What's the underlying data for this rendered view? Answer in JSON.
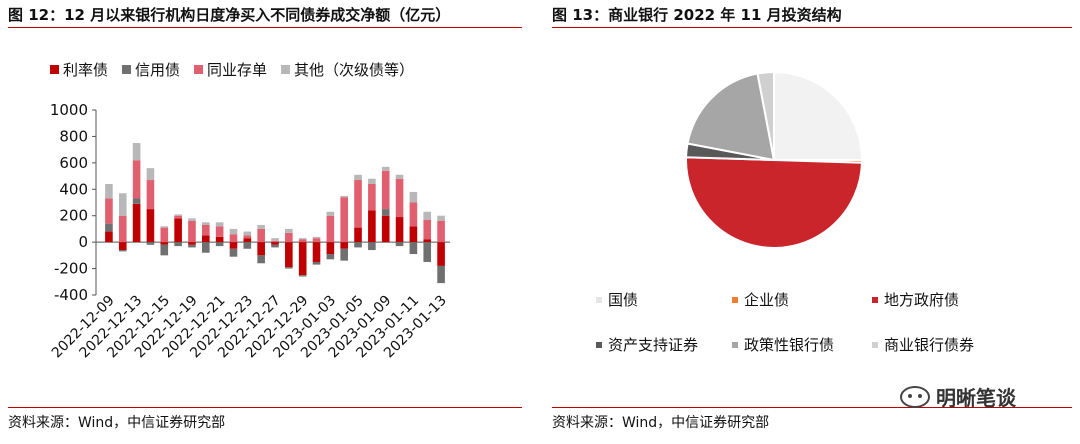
{
  "left_panel": {
    "title": "图 12：12 月以来银行机构日度净买入不同债券成交净额（亿元）",
    "source": "资料来源：Wind，中信证券研究部"
  },
  "right_panel": {
    "title": "图 13：商业银行 2022 年 11 月投资结构",
    "source": "资料来源：Wind，中信证券研究部"
  },
  "watermark": "明晰笔谈",
  "chart_data": [
    {
      "type": "bar",
      "stacked": true,
      "title": "图 12：12 月以来银行机构日度净买入不同债券成交净额（亿元）",
      "ylim": [
        -400,
        1000
      ],
      "yticks": [
        -400,
        -200,
        0,
        200,
        400,
        600,
        800,
        1000
      ],
      "xtick_labels": [
        "2022-12-09",
        "2022-12-13",
        "2022-12-15",
        "2022-12-19",
        "2022-12-21",
        "2022-12-23",
        "2022-12-27",
        "2022-12-29",
        "2023-01-03",
        "2023-01-05",
        "2023-01-09",
        "2023-01-11",
        "2023-01-13"
      ],
      "legend_position": "top",
      "categories": [
        "2022-12-09",
        "2022-12-12",
        "2022-12-13",
        "2022-12-14",
        "2022-12-15",
        "2022-12-16",
        "2022-12-19",
        "2022-12-20",
        "2022-12-21",
        "2022-12-22",
        "2022-12-23",
        "2022-12-26",
        "2022-12-27",
        "2022-12-28",
        "2022-12-29",
        "2022-12-30",
        "2023-01-03",
        "2023-01-04",
        "2023-01-05",
        "2023-01-06",
        "2023-01-09",
        "2023-01-10",
        "2023-01-11",
        "2023-01-12",
        "2023-01-13"
      ],
      "series": [
        {
          "name": "利率债",
          "color": "#c00000",
          "values": [
            80,
            -60,
            290,
            250,
            -20,
            180,
            -20,
            50,
            40,
            -50,
            30,
            -100,
            -20,
            -190,
            -250,
            -150,
            -90,
            -50,
            110,
            240,
            200,
            190,
            120,
            20,
            -180
          ]
        },
        {
          "name": "信用债",
          "color": "#707070",
          "values": [
            60,
            -10,
            40,
            -20,
            -80,
            -30,
            -20,
            -80,
            -30,
            -60,
            -50,
            -60,
            -20,
            -10,
            -10,
            -20,
            -40,
            -90,
            -40,
            -60,
            50,
            -30,
            -90,
            -150,
            -130
          ]
        },
        {
          "name": "同业存单",
          "color": "#e06070",
          "values": [
            190,
            200,
            290,
            220,
            110,
            20,
            160,
            80,
            80,
            60,
            20,
            100,
            10,
            70,
            20,
            30,
            200,
            340,
            360,
            200,
            290,
            290,
            180,
            150,
            160
          ]
        },
        {
          "name": "其他（次级债等）",
          "color": "#b8b8b8",
          "values": [
            110,
            170,
            130,
            90,
            10,
            10,
            20,
            20,
            30,
            40,
            30,
            30,
            20,
            30,
            10,
            10,
            30,
            10,
            40,
            40,
            30,
            30,
            80,
            60,
            40
          ]
        }
      ]
    },
    {
      "type": "pie",
      "title": "图 13：商业银行 2022 年 11 月投资结构",
      "legend_position": "bottom",
      "slices": [
        {
          "label": "国债",
          "value": 25,
          "color": "#f2f2f2"
        },
        {
          "label": "企业债",
          "value": 0.5,
          "color": "#ed7d31"
        },
        {
          "label": "地方政府债",
          "value": 50,
          "color": "#c9252b"
        },
        {
          "label": "资产支持证券",
          "value": 2.5,
          "color": "#595959"
        },
        {
          "label": "政策性银行债",
          "value": 19,
          "color": "#a6a6a6"
        },
        {
          "label": "商业银行债券",
          "value": 3,
          "color": "#d0d0d0"
        }
      ]
    }
  ]
}
